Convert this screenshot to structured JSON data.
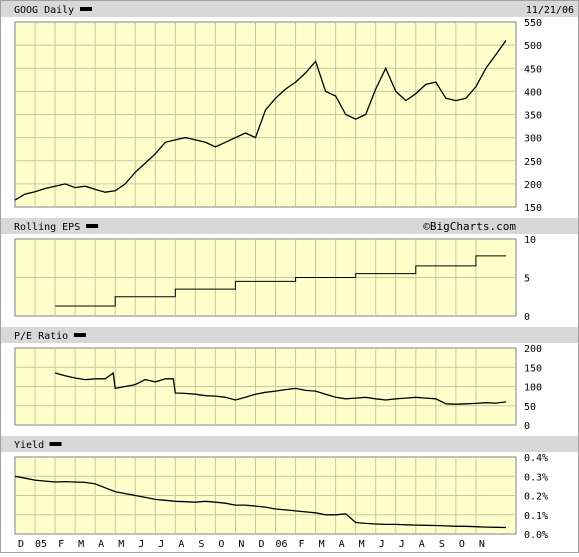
{
  "chart_data": [
    {
      "type": "line",
      "title": "GOOG Daily",
      "date": "11/21/06",
      "ylim": [
        150,
        550
      ],
      "yticks": [
        "150",
        "200",
        "250",
        "300",
        "350",
        "400",
        "450",
        "500",
        "550"
      ],
      "grid": true,
      "series": [
        {
          "name": "GOOG Daily",
          "x": [
            0,
            0.5,
            1,
            1.5,
            2,
            2.5,
            3,
            3.5,
            4,
            4.5,
            5,
            5.5,
            6,
            6.5,
            7,
            7.5,
            8,
            8.5,
            9,
            9.5,
            10,
            10.5,
            11,
            11.5,
            12,
            12.5,
            13,
            13.5,
            14,
            14.5,
            15,
            15.5,
            16,
            16.5,
            17,
            17.5,
            18,
            18.5,
            19,
            19.5,
            20,
            20.5,
            21,
            21.5,
            22,
            22.5,
            23,
            23.5,
            24,
            24.5
          ],
          "values": [
            165,
            178,
            183,
            190,
            195,
            200,
            192,
            195,
            188,
            182,
            185,
            200,
            225,
            245,
            265,
            290,
            295,
            300,
            295,
            290,
            280,
            290,
            300,
            310,
            300,
            360,
            385,
            405,
            420,
            440,
            465,
            400,
            390,
            350,
            340,
            350,
            405,
            450,
            400,
            380,
            395,
            415,
            420,
            385,
            380,
            385,
            410,
            450,
            480,
            510
          ]
        }
      ]
    },
    {
      "type": "line",
      "title": "Rolling EPS",
      "watermark": "©BigCharts.com",
      "ylim": [
        0,
        10
      ],
      "yticks": [
        "0",
        "5",
        "10"
      ],
      "grid": true,
      "series": [
        {
          "name": "Rolling EPS",
          "x": [
            2,
            5,
            5,
            8,
            8,
            11,
            11,
            14,
            14,
            17,
            17,
            20,
            20,
            23,
            23,
            24.5
          ],
          "values": [
            1.3,
            1.3,
            2.5,
            2.5,
            3.5,
            3.5,
            4.5,
            4.5,
            5.0,
            5.0,
            5.5,
            5.5,
            6.5,
            6.5,
            7.8,
            7.8
          ]
        }
      ]
    },
    {
      "type": "line",
      "title": "P/E Ratio",
      "ylim": [
        0,
        200
      ],
      "yticks": [
        "0",
        "50",
        "100",
        "150",
        "200"
      ],
      "grid": true,
      "series": [
        {
          "name": "P/E Ratio",
          "x": [
            2,
            2.5,
            3,
            3.5,
            4,
            4.5,
            4.9,
            5,
            5.5,
            6,
            6.5,
            7,
            7.5,
            7.9,
            8,
            8.5,
            9,
            9.5,
            10,
            10.5,
            11,
            11.5,
            12,
            12.5,
            13,
            13.5,
            14,
            14.5,
            15,
            15.5,
            16,
            16.5,
            17,
            17.5,
            18,
            18.5,
            19,
            19.5,
            20,
            20.5,
            21,
            21.5,
            22,
            22.5,
            23,
            23.5,
            24,
            24.5
          ],
          "values": [
            135,
            128,
            122,
            118,
            120,
            120,
            135,
            95,
            100,
            105,
            118,
            112,
            120,
            120,
            83,
            82,
            80,
            76,
            75,
            72,
            65,
            72,
            80,
            85,
            88,
            92,
            95,
            90,
            88,
            80,
            72,
            68,
            70,
            72,
            68,
            65,
            68,
            70,
            72,
            70,
            68,
            55,
            54,
            55,
            56,
            58,
            57,
            60
          ]
        }
      ]
    },
    {
      "type": "line",
      "title": "Yield",
      "ylim": [
        0,
        0.4
      ],
      "yticks": [
        "0.0%",
        "0.1%",
        "0.2%",
        "0.3%",
        "0.4%"
      ],
      "grid": true,
      "series": [
        {
          "name": "Yield",
          "x": [
            0,
            0.5,
            1,
            1.5,
            2,
            2.5,
            3,
            3.5,
            4,
            4.5,
            5,
            5.5,
            6,
            6.5,
            7,
            7.5,
            8,
            8.5,
            9,
            9.5,
            10,
            10.5,
            11,
            11.5,
            12,
            12.5,
            13,
            13.5,
            14,
            14.5,
            15,
            15.5,
            16,
            16.5,
            17,
            17.5,
            18,
            18.5,
            19,
            19.5,
            20,
            20.5,
            21,
            21.5,
            22,
            22.5,
            23,
            23.5,
            24,
            24.5
          ],
          "values": [
            0.3,
            0.29,
            0.28,
            0.275,
            0.27,
            0.272,
            0.27,
            0.268,
            0.26,
            0.24,
            0.22,
            0.21,
            0.2,
            0.19,
            0.18,
            0.175,
            0.17,
            0.168,
            0.165,
            0.17,
            0.165,
            0.16,
            0.15,
            0.15,
            0.145,
            0.14,
            0.13,
            0.125,
            0.12,
            0.115,
            0.11,
            0.1,
            0.1,
            0.105,
            0.06,
            0.055,
            0.052,
            0.05,
            0.05,
            0.048,
            0.046,
            0.045,
            0.044,
            0.042,
            0.04,
            0.04,
            0.038,
            0.036,
            0.035,
            0.034
          ]
        }
      ]
    }
  ],
  "x_axis": {
    "labels": [
      "D",
      "05",
      "F",
      "M",
      "A",
      "M",
      "J",
      "J",
      "A",
      "S",
      "O",
      "N",
      "D",
      "06",
      "F",
      "M",
      "A",
      "M",
      "J",
      "J",
      "A",
      "S",
      "O",
      "N"
    ]
  },
  "colors": {
    "plot_bg": "#ffffcc",
    "grid": "#c8c8a0",
    "header_bg": "#d8d8d8",
    "line": "#000000"
  }
}
